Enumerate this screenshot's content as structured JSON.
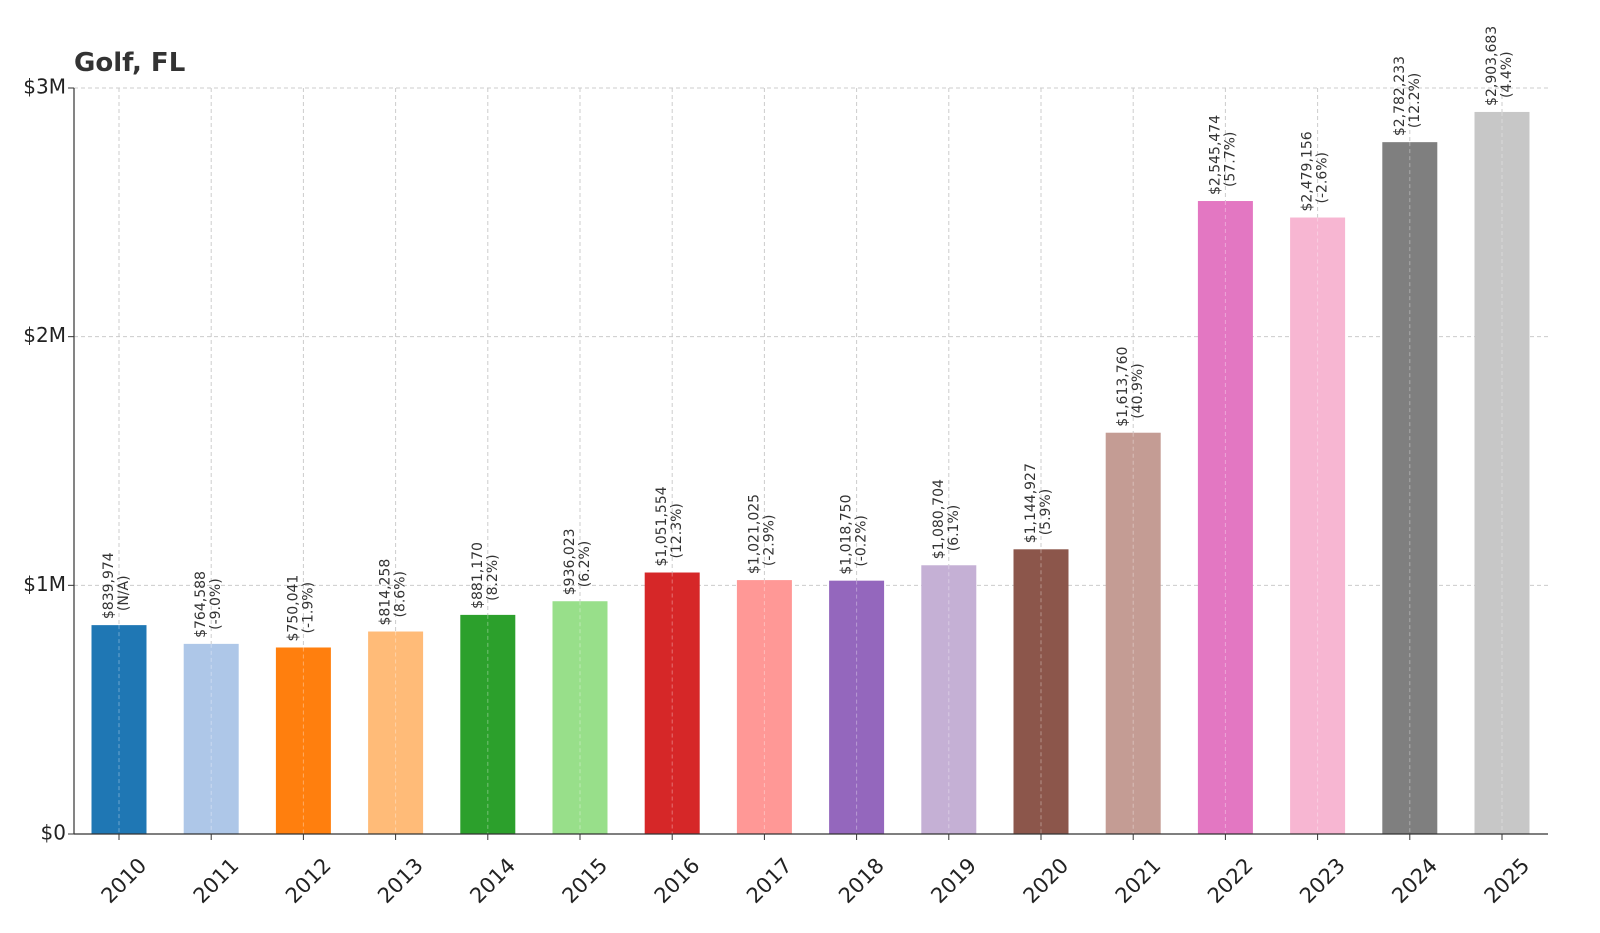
{
  "chart_data": {
    "type": "bar",
    "title": "Golf, FL",
    "xlabel": "",
    "ylabel": "",
    "ylim": [
      0,
      3000000
    ],
    "yticks": [
      {
        "value": 0,
        "label": "$0"
      },
      {
        "value": 1000000,
        "label": "$1M"
      },
      {
        "value": 2000000,
        "label": "$2M"
      },
      {
        "value": 3000000,
        "label": "$3M"
      }
    ],
    "grid": true,
    "categories": [
      "2010",
      "2011",
      "2012",
      "2013",
      "2014",
      "2015",
      "2016",
      "2017",
      "2018",
      "2019",
      "2020",
      "2021",
      "2022",
      "2023",
      "2024",
      "2025"
    ],
    "values": [
      839974,
      764588,
      750041,
      814258,
      881170,
      936023,
      1051554,
      1021025,
      1018750,
      1080704,
      1144927,
      1613760,
      2545474,
      2479156,
      2782233,
      2903683
    ],
    "value_labels": [
      "$839,974",
      "$764,588",
      "$750,041",
      "$814,258",
      "$881,170",
      "$936,023",
      "$1,051,554",
      "$1,021,025",
      "$1,018,750",
      "$1,080,704",
      "$1,144,927",
      "$1,613,760",
      "$2,545,474",
      "$2,479,156",
      "$2,782,233",
      "$2,903,683"
    ],
    "change_labels": [
      "(N/A)",
      "(-9.0%)",
      "(-1.9%)",
      "(8.6%)",
      "(8.2%)",
      "(6.2%)",
      "(12.3%)",
      "(-2.9%)",
      "(-0.2%)",
      "(6.1%)",
      "(5.9%)",
      "(40.9%)",
      "(57.7%)",
      "(-2.6%)",
      "(12.2%)",
      "(4.4%)"
    ],
    "colors": [
      "#1f77b4",
      "#aec7e8",
      "#ff7f0e",
      "#ffbb78",
      "#2ca02c",
      "#98df8a",
      "#d62728",
      "#ff9896",
      "#9467bd",
      "#c5b0d5",
      "#8c564b",
      "#c49c94",
      "#e377c2",
      "#f7b6d2",
      "#7f7f7f",
      "#c7c7c7"
    ]
  }
}
